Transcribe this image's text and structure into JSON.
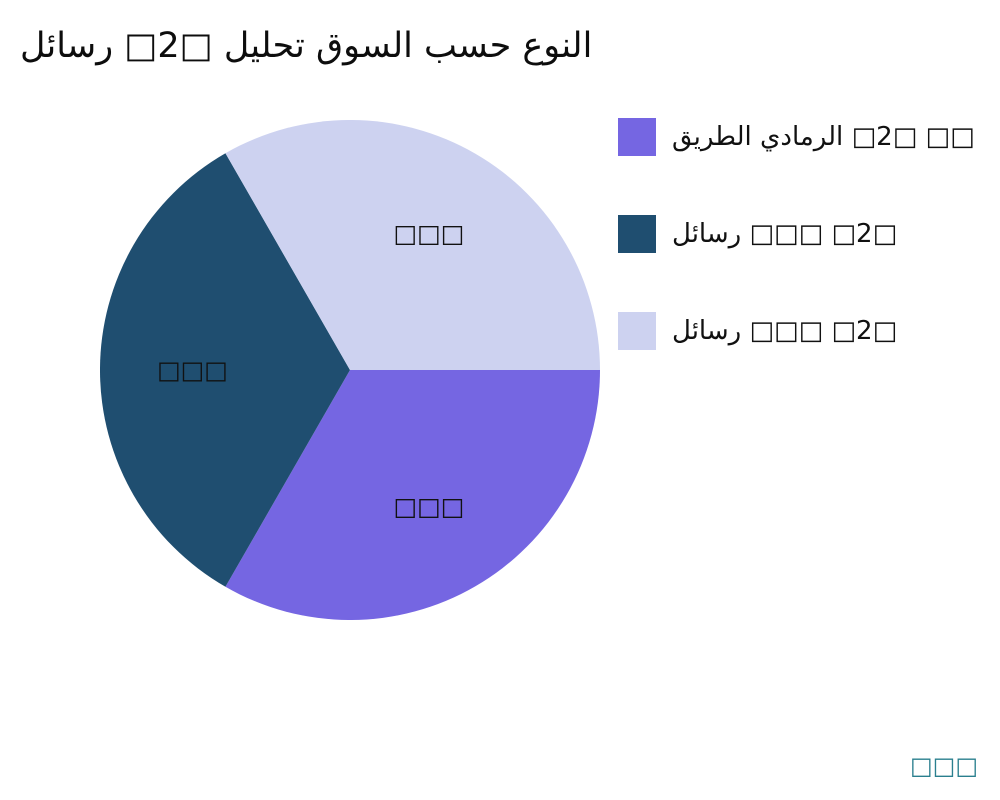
{
  "chart_data": {
    "type": "pie",
    "title": "رسائل □2□ تحليل السوق حسب النوع",
    "start_angle_deg": 0,
    "direction": "clockwise",
    "legend_position": "right",
    "label_color": "#111111",
    "slices": [
      {
        "label": "الطريق الرمادي □2□ □□",
        "value": 33.3,
        "color": "#7566e2",
        "slice_label": "□□□"
      },
      {
        "label": "رسائل □□□ □2□",
        "value": 33.4,
        "color": "#1f4e70",
        "slice_label": "□□□"
      },
      {
        "label": "رسائل □□□ □2□",
        "value": 33.3,
        "color": "#cdd2f0",
        "slice_label": "□□□"
      }
    ]
  },
  "footer": {
    "text": "□□□",
    "color": "#2a7f8e"
  }
}
